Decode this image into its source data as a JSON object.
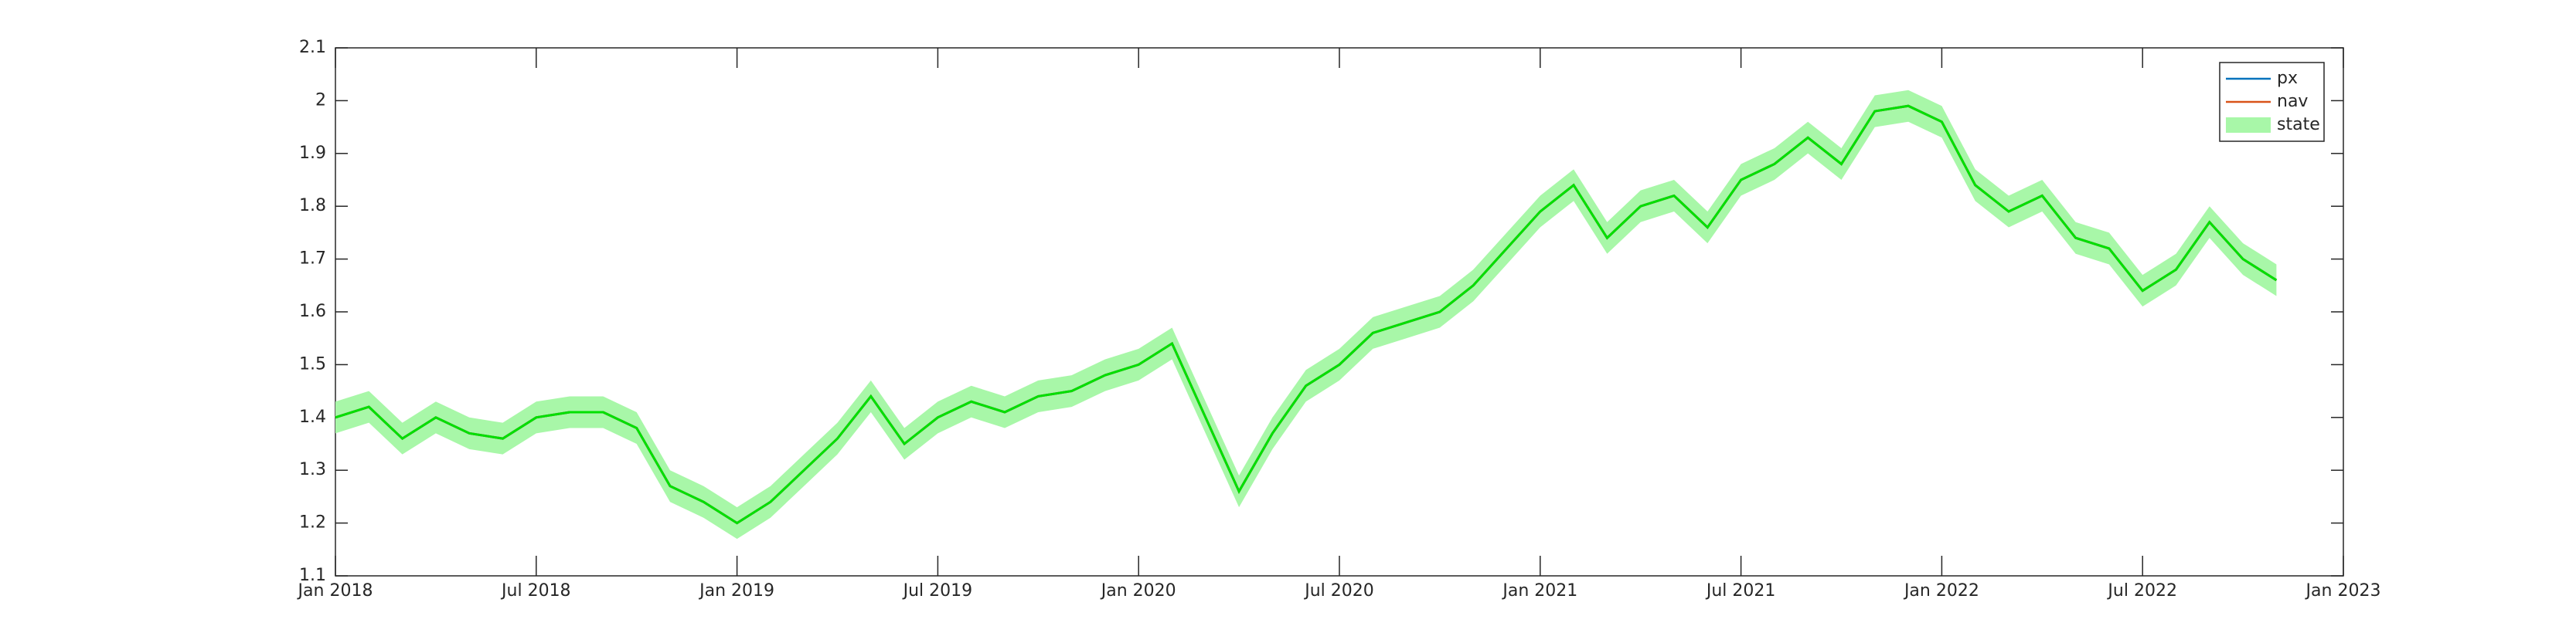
{
  "chart_data": {
    "type": "line",
    "x": [
      "2018-01",
      "2018-02",
      "2018-03",
      "2018-04",
      "2018-05",
      "2018-06",
      "2018-07",
      "2018-08",
      "2018-09",
      "2018-10",
      "2018-11",
      "2018-12",
      "2019-01",
      "2019-02",
      "2019-03",
      "2019-04",
      "2019-05",
      "2019-06",
      "2019-07",
      "2019-08",
      "2019-09",
      "2019-10",
      "2019-11",
      "2019-12",
      "2020-01",
      "2020-02",
      "2020-03",
      "2020-04",
      "2020-05",
      "2020-06",
      "2020-07",
      "2020-08",
      "2020-09",
      "2020-10",
      "2020-11",
      "2020-12",
      "2021-01",
      "2021-02",
      "2021-03",
      "2021-04",
      "2021-05",
      "2021-06",
      "2021-07",
      "2021-08",
      "2021-09",
      "2021-10",
      "2021-11",
      "2021-12",
      "2022-01",
      "2022-02",
      "2022-03",
      "2022-04",
      "2022-05",
      "2022-06",
      "2022-07",
      "2022-08",
      "2022-09",
      "2022-10",
      "2022-11"
    ],
    "series": [
      {
        "name": "px",
        "color": "#0072bd",
        "values": [
          1.4,
          1.42,
          1.36,
          1.4,
          1.37,
          1.36,
          1.4,
          1.41,
          1.41,
          1.38,
          1.27,
          1.24,
          1.2,
          1.24,
          1.3,
          1.36,
          1.44,
          1.35,
          1.4,
          1.43,
          1.41,
          1.44,
          1.45,
          1.48,
          1.5,
          1.54,
          1.4,
          1.26,
          1.37,
          1.46,
          1.5,
          1.56,
          1.58,
          1.6,
          1.65,
          1.72,
          1.79,
          1.84,
          1.74,
          1.8,
          1.82,
          1.76,
          1.85,
          1.88,
          1.93,
          1.88,
          1.98,
          1.99,
          1.96,
          1.84,
          1.79,
          1.82,
          1.74,
          1.72,
          1.64,
          1.68,
          1.77,
          1.7,
          1.66
        ]
      },
      {
        "name": "nav",
        "color": "#d95319",
        "values": [
          1.4,
          1.42,
          1.36,
          1.4,
          1.37,
          1.36,
          1.4,
          1.41,
          1.41,
          1.38,
          1.27,
          1.24,
          1.2,
          1.24,
          1.3,
          1.36,
          1.44,
          1.35,
          1.4,
          1.43,
          1.41,
          1.44,
          1.45,
          1.48,
          1.5,
          1.54,
          1.4,
          1.26,
          1.37,
          1.46,
          1.5,
          1.56,
          1.58,
          1.6,
          1.65,
          1.72,
          1.79,
          1.84,
          1.74,
          1.8,
          1.82,
          1.76,
          1.85,
          1.88,
          1.93,
          1.88,
          1.98,
          1.99,
          1.96,
          1.84,
          1.79,
          1.82,
          1.74,
          1.72,
          1.64,
          1.68,
          1.77,
          1.7,
          1.66
        ]
      },
      {
        "name": "state",
        "color": "#00e000",
        "band_color": "#a8f7a8",
        "values": [
          1.4,
          1.42,
          1.36,
          1.4,
          1.37,
          1.36,
          1.4,
          1.41,
          1.41,
          1.38,
          1.27,
          1.24,
          1.2,
          1.24,
          1.3,
          1.36,
          1.44,
          1.35,
          1.4,
          1.43,
          1.41,
          1.44,
          1.45,
          1.48,
          1.5,
          1.54,
          1.4,
          1.26,
          1.37,
          1.46,
          1.5,
          1.56,
          1.58,
          1.6,
          1.65,
          1.72,
          1.79,
          1.84,
          1.74,
          1.8,
          1.82,
          1.76,
          1.85,
          1.88,
          1.93,
          1.88,
          1.98,
          1.99,
          1.96,
          1.84,
          1.79,
          1.82,
          1.74,
          1.72,
          1.64,
          1.68,
          1.77,
          1.7,
          1.66
        ],
        "lower": [
          1.37,
          1.39,
          1.33,
          1.37,
          1.34,
          1.33,
          1.37,
          1.38,
          1.38,
          1.35,
          1.24,
          1.21,
          1.17,
          1.21,
          1.27,
          1.33,
          1.41,
          1.32,
          1.37,
          1.4,
          1.38,
          1.41,
          1.42,
          1.45,
          1.47,
          1.51,
          1.37,
          1.23,
          1.34,
          1.43,
          1.47,
          1.53,
          1.55,
          1.57,
          1.62,
          1.69,
          1.76,
          1.81,
          1.71,
          1.77,
          1.79,
          1.73,
          1.82,
          1.85,
          1.9,
          1.85,
          1.95,
          1.96,
          1.93,
          1.81,
          1.76,
          1.79,
          1.71,
          1.69,
          1.61,
          1.65,
          1.74,
          1.67,
          1.63
        ],
        "upper": [
          1.43,
          1.45,
          1.39,
          1.43,
          1.4,
          1.39,
          1.43,
          1.44,
          1.44,
          1.41,
          1.3,
          1.27,
          1.23,
          1.27,
          1.33,
          1.39,
          1.47,
          1.38,
          1.43,
          1.46,
          1.44,
          1.47,
          1.48,
          1.51,
          1.53,
          1.57,
          1.43,
          1.29,
          1.4,
          1.49,
          1.53,
          1.59,
          1.61,
          1.63,
          1.68,
          1.75,
          1.82,
          1.87,
          1.77,
          1.83,
          1.85,
          1.79,
          1.88,
          1.91,
          1.96,
          1.91,
          2.01,
          2.02,
          1.99,
          1.87,
          1.82,
          1.85,
          1.77,
          1.75,
          1.67,
          1.71,
          1.8,
          1.73,
          1.69
        ]
      }
    ],
    "xlim": [
      "2018-01",
      "2023-01"
    ],
    "xticks": [
      {
        "value": "2018-01",
        "label": "Jan 2018"
      },
      {
        "value": "2018-07",
        "label": "Jul 2018"
      },
      {
        "value": "2019-01",
        "label": "Jan 2019"
      },
      {
        "value": "2019-07",
        "label": "Jul 2019"
      },
      {
        "value": "2020-01",
        "label": "Jan 2020"
      },
      {
        "value": "2020-07",
        "label": "Jul 2020"
      },
      {
        "value": "2021-01",
        "label": "Jan 2021"
      },
      {
        "value": "2021-07",
        "label": "Jul 2021"
      },
      {
        "value": "2022-01",
        "label": "Jan 2022"
      },
      {
        "value": "2022-07",
        "label": "Jul 2022"
      },
      {
        "value": "2023-01",
        "label": "Jan 2023"
      }
    ],
    "ylim": [
      1.1,
      2.1
    ],
    "yticks": [
      1.1,
      1.2,
      1.3,
      1.4,
      1.5,
      1.6,
      1.7,
      1.8,
      1.9,
      2,
      2.1
    ],
    "grid": false,
    "legend": "top-right"
  }
}
